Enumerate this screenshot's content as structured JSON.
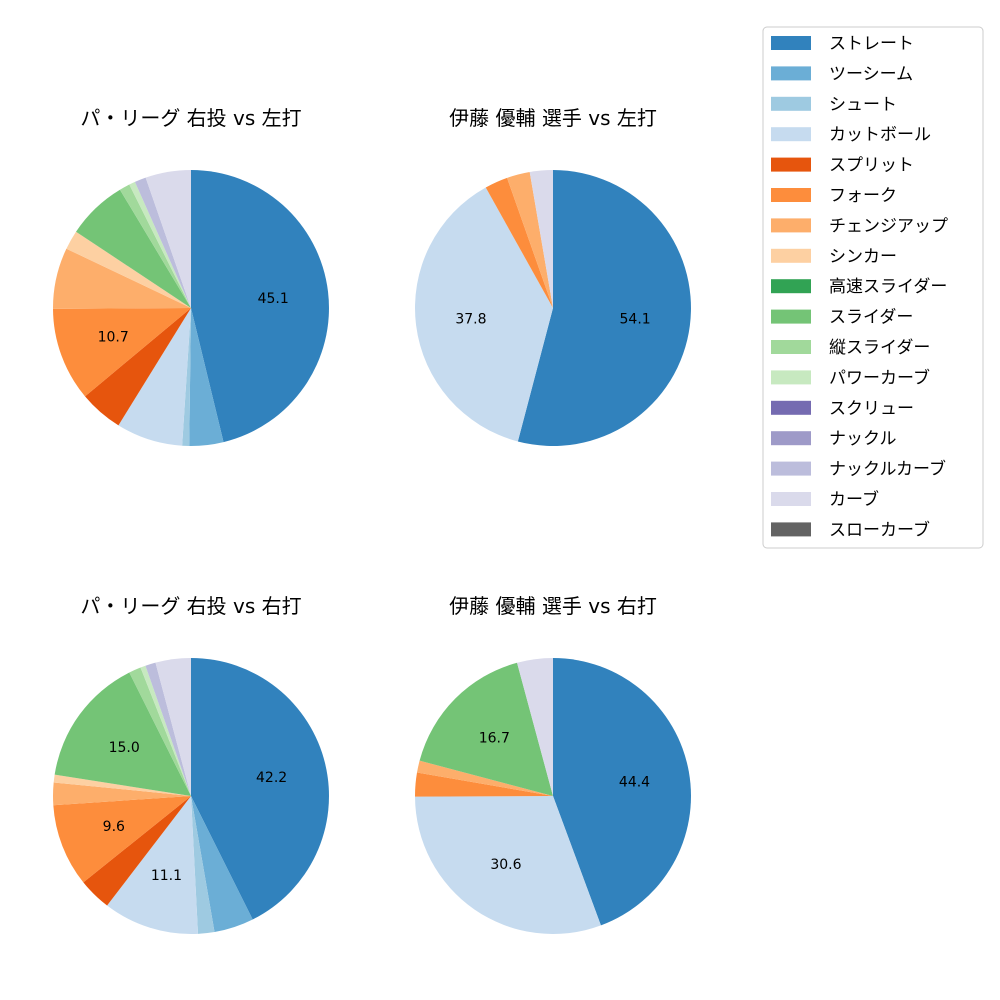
{
  "legend": {
    "items": [
      {
        "label": "ストレート",
        "color": "#3182bd"
      },
      {
        "label": "ツーシーム",
        "color": "#6baed6"
      },
      {
        "label": "シュート",
        "color": "#9ecae1"
      },
      {
        "label": "カットボール",
        "color": "#c6dbef"
      },
      {
        "label": "スプリット",
        "color": "#e6550d"
      },
      {
        "label": "フォーク",
        "color": "#fd8d3c"
      },
      {
        "label": "チェンジアップ",
        "color": "#fdae6b"
      },
      {
        "label": "シンカー",
        "color": "#fdd0a2"
      },
      {
        "label": "高速スライダー",
        "color": "#31a354"
      },
      {
        "label": "スライダー",
        "color": "#74c476"
      },
      {
        "label": "縦スライダー",
        "color": "#a1d99b"
      },
      {
        "label": "パワーカーブ",
        "color": "#c7e9c0"
      },
      {
        "label": "スクリュー",
        "color": "#756bb1"
      },
      {
        "label": "ナックル",
        "color": "#9e9ac8"
      },
      {
        "label": "ナックルカーブ",
        "color": "#bcbddc"
      },
      {
        "label": "カーブ",
        "color": "#dadaeb"
      },
      {
        "label": "スローカーブ",
        "color": "#636363"
      }
    ]
  },
  "chart_data": [
    {
      "type": "pie",
      "title": "パ・リーグ 右投 vs 左打",
      "slices": [
        {
          "label": "ストレート",
          "value": 45.1,
          "text": "45.1"
        },
        {
          "label": "ツーシーム",
          "value": 3.9
        },
        {
          "label": "シュート",
          "value": 0.8
        },
        {
          "label": "カットボール",
          "value": 7.6
        },
        {
          "label": "スプリット",
          "value": 5.0
        },
        {
          "label": "フォーク",
          "value": 10.7,
          "text": "10.7"
        },
        {
          "label": "チェンジアップ",
          "value": 7.0
        },
        {
          "label": "シンカー",
          "value": 2.2
        },
        {
          "label": "スライダー",
          "value": 6.9
        },
        {
          "label": "縦スライダー",
          "value": 1.2
        },
        {
          "label": "パワーカーブ",
          "value": 0.7
        },
        {
          "label": "ナックルカーブ",
          "value": 1.3
        },
        {
          "label": "カーブ",
          "value": 5.2
        }
      ]
    },
    {
      "type": "pie",
      "title": "伊藤 優輔 選手 vs 左打",
      "slices": [
        {
          "label": "ストレート",
          "value": 54.1,
          "text": "54.1"
        },
        {
          "label": "カットボール",
          "value": 37.8,
          "text": "37.8"
        },
        {
          "label": "フォーク",
          "value": 2.7
        },
        {
          "label": "チェンジアップ",
          "value": 2.7
        },
        {
          "label": "カーブ",
          "value": 2.7
        }
      ]
    },
    {
      "type": "pie",
      "title": "パ・リーグ 右投 vs 右打",
      "slices": [
        {
          "label": "ストレート",
          "value": 42.2,
          "text": "42.2"
        },
        {
          "label": "ツーシーム",
          "value": 4.6
        },
        {
          "label": "シュート",
          "value": 1.9
        },
        {
          "label": "カットボール",
          "value": 11.1,
          "text": "11.1"
        },
        {
          "label": "スプリット",
          "value": 3.8
        },
        {
          "label": "フォーク",
          "value": 9.6,
          "text": "9.6"
        },
        {
          "label": "チェンジアップ",
          "value": 2.6
        },
        {
          "label": "シンカー",
          "value": 0.9
        },
        {
          "label": "スライダー",
          "value": 15.0,
          "text": "15.0"
        },
        {
          "label": "縦スライダー",
          "value": 1.4
        },
        {
          "label": "パワーカーブ",
          "value": 0.6
        },
        {
          "label": "ナックルカーブ",
          "value": 1.2
        },
        {
          "label": "カーブ",
          "value": 4.1
        }
      ]
    },
    {
      "type": "pie",
      "title": "伊藤 優輔 選手 vs 右打",
      "slices": [
        {
          "label": "ストレート",
          "value": 44.4,
          "text": "44.4"
        },
        {
          "label": "カットボール",
          "value": 30.6,
          "text": "30.6"
        },
        {
          "label": "フォーク",
          "value": 2.8
        },
        {
          "label": "チェンジアップ",
          "value": 1.4
        },
        {
          "label": "スライダー",
          "value": 16.7,
          "text": "16.7"
        },
        {
          "label": "カーブ",
          "value": 4.2
        }
      ]
    }
  ]
}
